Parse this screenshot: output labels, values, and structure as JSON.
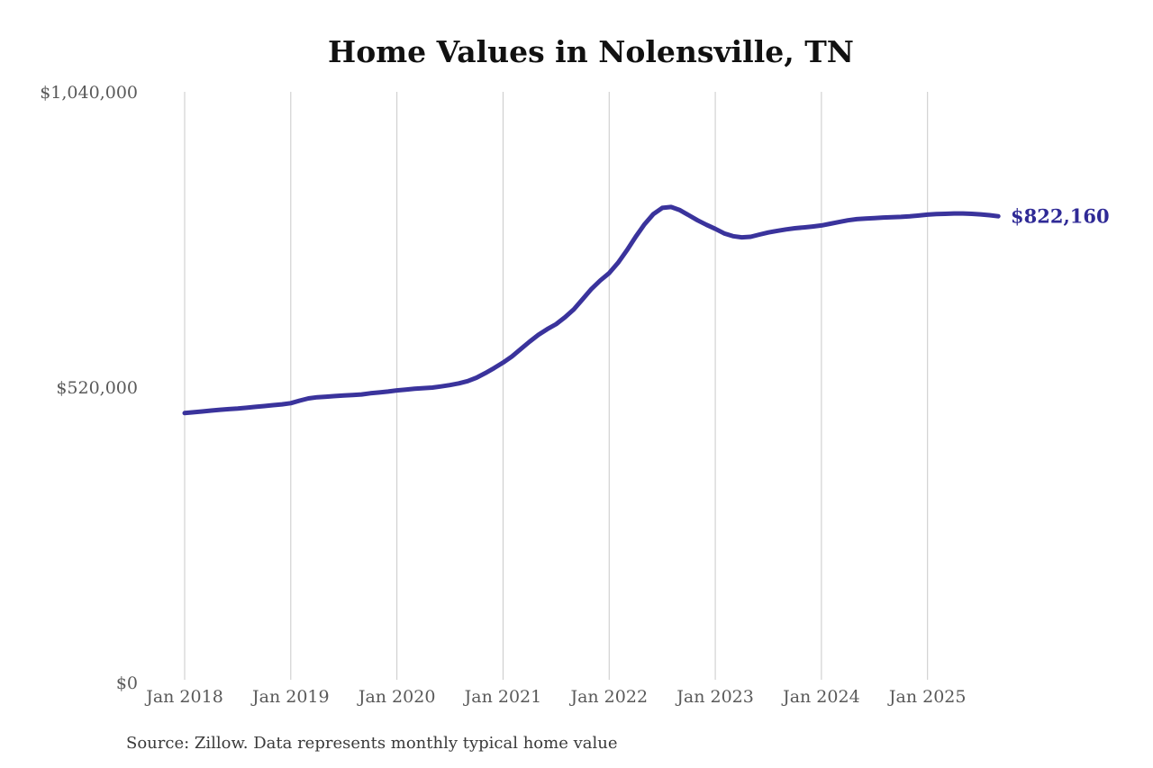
{
  "chart_data": {
    "type": "line",
    "title": "Home Values in Nolensville, TN",
    "source_note": "Source: Zillow. Data represents monthly typical home value",
    "series_name": "Monthly typical home value",
    "unit": "USD",
    "frequency": "monthly",
    "start_month": "2018-01",
    "end_month": "2025-09",
    "ylim": [
      0,
      1040000
    ],
    "y_tick_values": [
      0,
      520000,
      1040000
    ],
    "y_tick_labels": [
      "$0",
      "$520,000",
      "$1,040,000"
    ],
    "x_tick_labels": [
      "Jan 2018",
      "Jan 2019",
      "Jan 2020",
      "Jan 2021",
      "Jan 2022",
      "Jan 2023",
      "Jan 2024",
      "Jan 2025"
    ],
    "grid": "vertical-gridlines-only",
    "legend": "none",
    "end_label": "$822,160",
    "end_value": 822160,
    "peak": {
      "month": "2022-08",
      "value": 838500
    },
    "colors": {
      "line": "#3a339c",
      "end_label": "#2f2a96",
      "grid": "#c9c9c9",
      "title": "#111111",
      "tick_text": "#595959",
      "source_text": "#3a3a3a",
      "background": "#ffffff"
    },
    "values": [
      475000,
      476500,
      478000,
      479500,
      481000,
      482000,
      483000,
      484500,
      486000,
      487500,
      489000,
      490500,
      492500,
      497000,
      501000,
      503000,
      504000,
      505000,
      506000,
      507000,
      508000,
      510000,
      511500,
      513000,
      515000,
      516500,
      518000,
      519000,
      520000,
      522000,
      524500,
      527500,
      531500,
      537500,
      545500,
      554500,
      564000,
      575000,
      588000,
      601000,
      613000,
      623000,
      632000,
      644000,
      658000,
      676000,
      694000,
      709000,
      722000,
      740000,
      762000,
      786000,
      808000,
      826000,
      837000,
      838500,
      833000,
      824000,
      815000,
      807000,
      800000,
      792000,
      787000,
      785000,
      786000,
      790000,
      793500,
      796500,
      799000,
      801000,
      802500,
      804000,
      806000,
      809000,
      812000,
      815000,
      817000,
      818000,
      819000,
      820000,
      820500,
      821000,
      822000,
      823500,
      825000,
      826000,
      826500,
      827000,
      827000,
      826500,
      825500,
      824000,
      822160
    ]
  }
}
